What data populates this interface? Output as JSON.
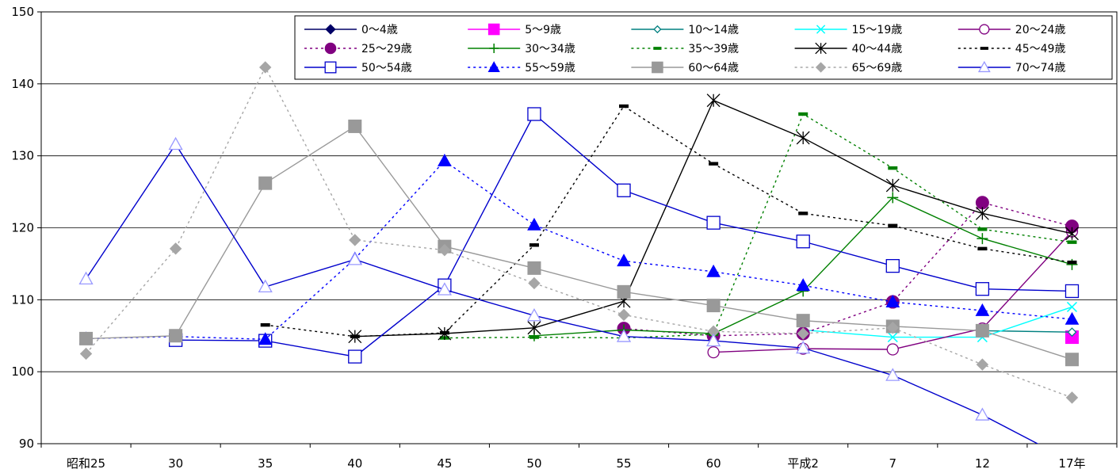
{
  "chart_data": {
    "type": "line",
    "categories": [
      "昭和25",
      "30",
      "35",
      "40",
      "45",
      "50",
      "55",
      "60",
      "平成2",
      "7",
      "12",
      "17年"
    ],
    "ylim": [
      90,
      150
    ],
    "yticks": [
      90,
      100,
      110,
      120,
      130,
      140,
      150
    ],
    "grid": true,
    "legend_position": "top-right",
    "series": [
      {
        "name": "0～4歳",
        "color": "#000066",
        "dash": false,
        "marker": "diamond-filled",
        "values": [
          null,
          null,
          null,
          null,
          null,
          null,
          null,
          null,
          null,
          null,
          null,
          null
        ]
      },
      {
        "name": "5～9歳",
        "color": "#FF00FF",
        "dash": false,
        "marker": "square-filled",
        "values": [
          null,
          null,
          null,
          null,
          null,
          null,
          null,
          null,
          null,
          null,
          null,
          104.8
        ]
      },
      {
        "name": "10～14歳",
        "color": "#008080",
        "dash": false,
        "marker": "diamond-open",
        "values": [
          null,
          null,
          null,
          null,
          null,
          null,
          null,
          null,
          null,
          null,
          105.7,
          105.5
        ]
      },
      {
        "name": "15～19歳",
        "color": "#00FFFF",
        "dash": false,
        "marker": "x",
        "values": [
          null,
          null,
          null,
          null,
          null,
          null,
          null,
          null,
          105.8,
          104.8,
          104.8,
          109.0
        ]
      },
      {
        "name": "20～24歳",
        "color": "#800080",
        "dash": false,
        "marker": "circle-open",
        "values": [
          null,
          null,
          null,
          null,
          null,
          null,
          null,
          102.7,
          103.2,
          103.1,
          106.0,
          119.5
        ]
      },
      {
        "name": "25～29歳",
        "color": "#800080",
        "dash": true,
        "marker": "circle-filled",
        "values": [
          null,
          null,
          null,
          null,
          null,
          null,
          106.0,
          105.0,
          105.3,
          109.7,
          123.5,
          120.2
        ]
      },
      {
        "name": "30～34歳",
        "color": "#008000",
        "dash": false,
        "marker": "plus",
        "values": [
          null,
          null,
          null,
          null,
          null,
          105.0,
          105.8,
          105.3,
          111.2,
          124.2,
          118.5,
          114.9
        ]
      },
      {
        "name": "35～39歳",
        "color": "#008000",
        "dash": true,
        "marker": "dash",
        "values": [
          null,
          null,
          null,
          null,
          104.7,
          104.8,
          104.7,
          105.2,
          135.8,
          128.3,
          119.8,
          118.0
        ]
      },
      {
        "name": "40～44歳",
        "color": "#000000",
        "dash": false,
        "marker": "star",
        "values": [
          null,
          null,
          null,
          104.9,
          105.3,
          106.1,
          109.8,
          137.7,
          132.5,
          125.9,
          122.0,
          119.2
        ]
      },
      {
        "name": "45～49歳",
        "color": "#000000",
        "dash": true,
        "marker": "dash",
        "values": [
          null,
          null,
          106.5,
          104.9,
          105.4,
          117.6,
          136.9,
          128.9,
          122.0,
          120.3,
          117.1,
          115.2
        ]
      },
      {
        "name": "50～54歳",
        "color": "#0000CC",
        "dash": false,
        "marker": "square-open",
        "values": [
          null,
          104.4,
          104.3,
          102.1,
          112.0,
          135.8,
          125.2,
          120.7,
          118.1,
          114.7,
          111.5,
          111.2
        ]
      },
      {
        "name": "55～59歳",
        "color": "#0000FF",
        "dash": true,
        "marker": "triangle-filled",
        "values": [
          104.6,
          104.9,
          104.5,
          115.7,
          129.3,
          120.4,
          115.4,
          113.9,
          112.0,
          109.7,
          108.5,
          107.3
        ]
      },
      {
        "name": "60～64歳",
        "color": "#999999",
        "dash": false,
        "marker": "square-filled",
        "values": [
          104.6,
          105.0,
          126.2,
          134.1,
          117.4,
          114.4,
          111.1,
          109.2,
          107.1,
          106.3,
          105.7,
          101.7
        ]
      },
      {
        "name": "65～69歳",
        "color": "#A6A6A6",
        "dash": true,
        "marker": "diamond-filled",
        "values": [
          102.5,
          117.1,
          142.3,
          118.3,
          116.9,
          112.3,
          107.9,
          105.6,
          105.3,
          106.1,
          101.0,
          96.4
        ]
      },
      {
        "name": "70～74歳",
        "color": "#0000CC",
        "markerColor": "#9999FF",
        "dash": false,
        "marker": "triangle-open",
        "values": [
          112.9,
          131.6,
          111.8,
          115.6,
          111.4,
          107.8,
          104.9,
          104.3,
          103.3,
          99.5,
          94.0,
          87.5
        ]
      }
    ]
  }
}
